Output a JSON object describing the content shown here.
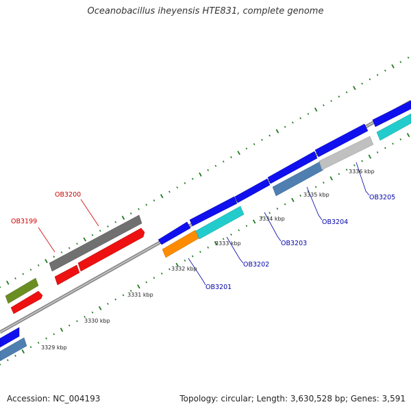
{
  "title": "Oceanobacillus iheyensis HTE831, complete genome",
  "footer": {
    "accession": "Accession: NC_004193",
    "info": "Topology: circular; Length: 3,630,528 bp; Genes: 3,591"
  },
  "colors": {
    "backbone": "#8a8a8a",
    "tick": "#1e7a1e",
    "label_red": "#cc0000",
    "label_blue": "#0000aa"
  },
  "kbp_labels": [
    "3329 kbp",
    "3330 kbp",
    "3331 kbp",
    "3332 kbp",
    "3333 kbp",
    "3334 kbp",
    "3335 kbp",
    "3336 kbp"
  ],
  "gene_labels": [
    {
      "text": "OB3199",
      "color": "red"
    },
    {
      "text": "OB3200",
      "color": "red"
    },
    {
      "text": "OB3201",
      "color": "blue"
    },
    {
      "text": "OB3202",
      "color": "blue"
    },
    {
      "text": "OB3203",
      "color": "blue"
    },
    {
      "text": "OB3204",
      "color": "blue"
    },
    {
      "text": "OB3205",
      "color": "blue"
    }
  ]
}
